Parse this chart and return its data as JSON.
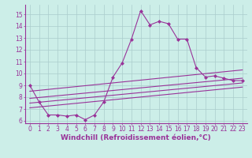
{
  "bg_color": "#cceee8",
  "grid_color": "#aacccc",
  "line_color": "#993399",
  "marker_color": "#993399",
  "xlabel": "Windchill (Refroidissement éolien,°C)",
  "xlim": [
    -0.5,
    23.5
  ],
  "ylim": [
    5.8,
    15.8
  ],
  "xticks": [
    0,
    1,
    2,
    3,
    4,
    5,
    6,
    7,
    8,
    9,
    10,
    11,
    12,
    13,
    14,
    15,
    16,
    17,
    18,
    19,
    20,
    21,
    22,
    23
  ],
  "yticks": [
    6,
    7,
    8,
    9,
    10,
    11,
    12,
    13,
    14,
    15
  ],
  "main_line_x": [
    0,
    1,
    2,
    3,
    4,
    5,
    6,
    7,
    8,
    9,
    10,
    11,
    12,
    13,
    14,
    15,
    16,
    17,
    18,
    19,
    20,
    21,
    22,
    23
  ],
  "main_line_y": [
    9.0,
    7.6,
    6.5,
    6.5,
    6.4,
    6.5,
    6.1,
    6.5,
    7.6,
    9.7,
    10.9,
    12.9,
    15.3,
    14.1,
    14.4,
    14.2,
    12.9,
    12.9,
    10.5,
    9.7,
    9.8,
    9.6,
    9.4,
    9.4
  ],
  "trend_lines": [
    [
      0.0,
      8.5,
      23.0,
      10.3
    ],
    [
      0.0,
      7.9,
      23.0,
      9.6
    ],
    [
      0.0,
      7.5,
      23.0,
      9.2
    ],
    [
      0.0,
      7.1,
      23.0,
      8.85
    ]
  ],
  "xlabel_fontsize": 6.5,
  "tick_fontsize": 5.5,
  "marker_size": 2.0,
  "line_width": 0.8
}
